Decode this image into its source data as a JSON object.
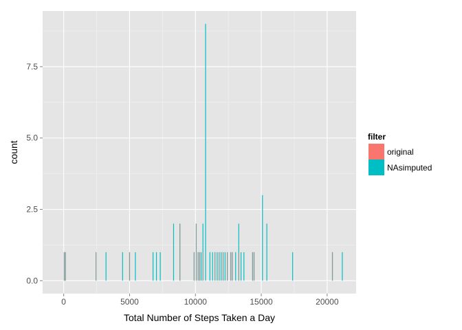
{
  "chart_data": {
    "type": "bar",
    "title": "",
    "xlabel": "Total Number of Steps Taken a Day",
    "ylabel": "count",
    "xlim": [
      -1600,
      22200
    ],
    "ylim": [
      -0.45,
      9.45
    ],
    "x_ticks": [
      0,
      5000,
      10000,
      15000,
      20000
    ],
    "x_tick_labels": [
      "0",
      "5000",
      "10000",
      "15000",
      "20000"
    ],
    "y_ticks": [
      0,
      2.5,
      5,
      7.5
    ],
    "y_tick_labels": [
      "0.0",
      "2.5",
      "5.0",
      "7.5"
    ],
    "grid": true,
    "bin_width": 60,
    "legend": {
      "title": "filter",
      "position": "right",
      "entries": [
        {
          "label": "original",
          "color": "#F8766D"
        },
        {
          "label": "NAsimputed",
          "color": "#00BFC4"
        }
      ]
    },
    "series": [
      {
        "name": "original",
        "color": "#F8766D",
        "x": [
          40,
          130,
          2450,
          5000,
          8820,
          9900,
          10060,
          10200,
          10320,
          10570,
          11480,
          11800,
          12100,
          12420,
          12680,
          12800,
          13290,
          14340,
          14450,
          20400
        ],
        "values": [
          1,
          1,
          1,
          1,
          2,
          1,
          2,
          1,
          1,
          1,
          1,
          1,
          1,
          1,
          1,
          1,
          1,
          1,
          1,
          1
        ]
      },
      {
        "name": "NAsimputed",
        "color": "#00BFC4",
        "x": [
          40,
          130,
          2450,
          3210,
          4470,
          5000,
          5440,
          6780,
          7040,
          7330,
          8340,
          8820,
          9900,
          10060,
          10200,
          10320,
          10430,
          10570,
          10770,
          11100,
          11300,
          11480,
          11650,
          11800,
          11950,
          12100,
          12250,
          12420,
          12680,
          12800,
          13050,
          13290,
          13460,
          13680,
          14340,
          14450,
          15090,
          15420,
          17380,
          20400,
          21150
        ],
        "values": [
          1,
          1,
          1,
          1,
          1,
          1,
          1,
          1,
          1,
          1,
          2,
          2,
          1,
          2,
          1,
          1,
          1,
          2,
          9,
          1,
          1,
          1,
          1,
          1,
          1,
          1,
          1,
          1,
          1,
          1,
          1,
          2,
          1,
          1,
          1,
          1,
          3,
          2,
          1,
          1,
          1
        ]
      }
    ]
  }
}
